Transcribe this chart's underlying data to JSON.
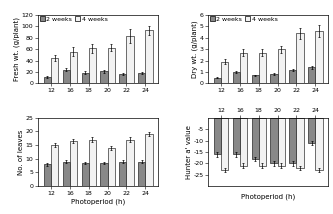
{
  "photoperiods": [
    12,
    16,
    18,
    20,
    22,
    24
  ],
  "fresh_wt_2wk": [
    11,
    24,
    19,
    21,
    16,
    18
  ],
  "fresh_wt_4wk": [
    45,
    56,
    62,
    63,
    83,
    93
  ],
  "fresh_wt_2wk_err": [
    2,
    3,
    2,
    2,
    2,
    2
  ],
  "fresh_wt_4wk_err": [
    5,
    8,
    8,
    6,
    12,
    8
  ],
  "fresh_wt_ylim": [
    0,
    120
  ],
  "fresh_wt_yticks": [
    0,
    20,
    40,
    60,
    80,
    100,
    120
  ],
  "dry_wt_2wk": [
    0.5,
    1.0,
    0.7,
    0.8,
    1.2,
    1.4
  ],
  "dry_wt_4wk": [
    1.9,
    2.7,
    2.7,
    3.0,
    4.4,
    4.6
  ],
  "dry_wt_2wk_err": [
    0.05,
    0.1,
    0.08,
    0.08,
    0.1,
    0.12
  ],
  "dry_wt_4wk_err": [
    0.2,
    0.3,
    0.3,
    0.3,
    0.5,
    0.5
  ],
  "dry_wt_ylim": [
    0,
    6
  ],
  "dry_wt_yticks": [
    0,
    1,
    2,
    3,
    4,
    5,
    6
  ],
  "leaves_2wk": [
    8,
    9,
    8.5,
    8.5,
    9,
    9
  ],
  "leaves_4wk": [
    15,
    16.5,
    17,
    14,
    17,
    19
  ],
  "leaves_2wk_err": [
    0.5,
    0.5,
    0.5,
    0.5,
    0.5,
    0.5
  ],
  "leaves_4wk_err": [
    0.8,
    0.8,
    0.8,
    0.8,
    0.8,
    0.8
  ],
  "leaves_ylim": [
    0,
    25
  ],
  "leaves_yticks": [
    0,
    5,
    10,
    15,
    20,
    25
  ],
  "hunter_a_2wk": [
    -16,
    -16,
    -18,
    -20,
    -20,
    -11
  ],
  "hunter_a_4wk": [
    -23,
    -21,
    -21,
    -21,
    -22,
    -23
  ],
  "hunter_a_2wk_err": [
    1,
    1,
    1,
    1,
    1,
    1
  ],
  "hunter_a_4wk_err": [
    1,
    1,
    1,
    1,
    1,
    1
  ],
  "hunter_a_ylim": [
    -30,
    0
  ],
  "hunter_a_yticks": [
    -25,
    -20,
    -15,
    -10,
    -5
  ],
  "color_2wk": "#888888",
  "color_4wk": "#f2f2f2",
  "bar_width": 0.38,
  "xlabel": "Photoperiod (h)",
  "ylabel_fresh": "Fresh wt. (g/plant)",
  "ylabel_dry": "Dry wt. (g/plant)",
  "ylabel_leaves": "No. of leaves",
  "ylabel_hunter": "Hunter a' value",
  "legend_2wk": "2 weeks",
  "legend_4wk": "4 weeks",
  "tick_fontsize": 4.5,
  "label_fontsize": 5.0,
  "legend_fontsize": 4.5
}
